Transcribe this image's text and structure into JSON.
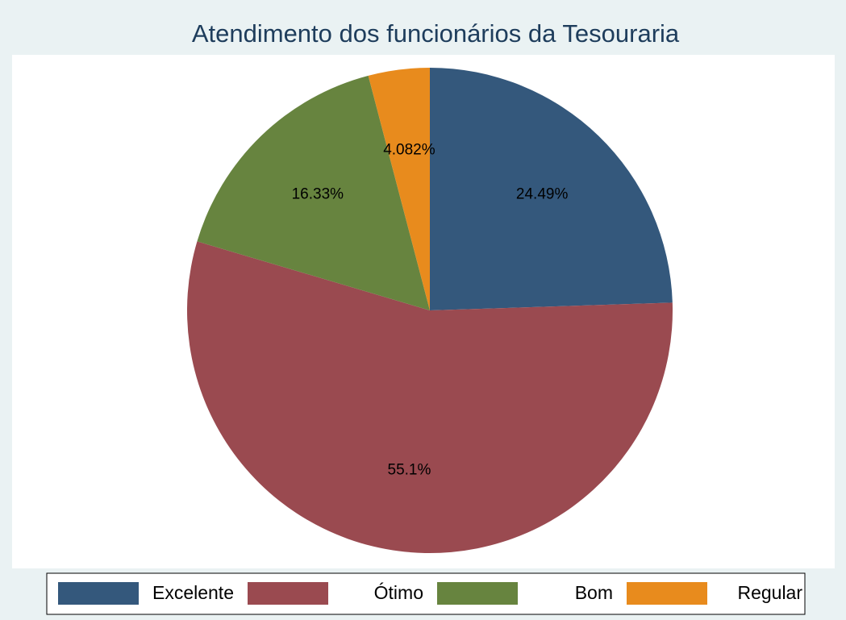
{
  "chart_data": {
    "type": "pie",
    "title": "Atendimento dos funcionários da Tesouraria",
    "categories": [
      "Excelente",
      "Ótimo",
      "Bom",
      "Regular"
    ],
    "values": [
      24.49,
      55.1,
      16.33,
      4.082
    ],
    "value_labels": [
      "24.49%",
      "55.1%",
      "16.33%",
      "4.082%"
    ],
    "colors": [
      "#34587c",
      "#9a4a50",
      "#67843f",
      "#e88b1d"
    ],
    "legend": "bottom"
  }
}
